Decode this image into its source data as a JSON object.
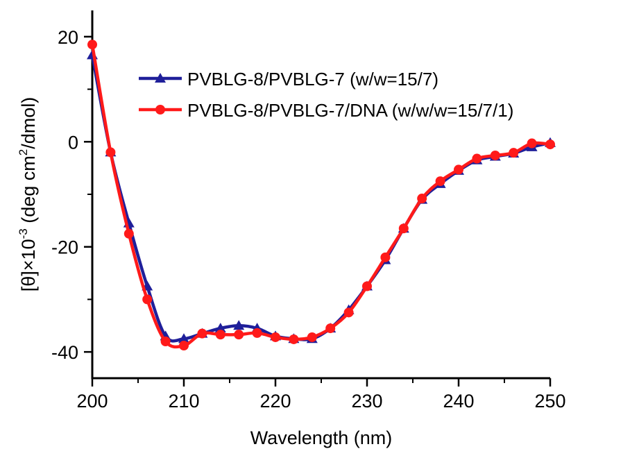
{
  "chart_data": {
    "type": "line",
    "xlabel": "Wavelength (nm)",
    "ylabel": {
      "prefix": "[θ]×10",
      "exp1": "-3",
      "middle": " (deg cm",
      "exp2": "2",
      "suffix": "/dmol)"
    },
    "xlim": [
      200,
      250
    ],
    "ylim": [
      -45,
      25
    ],
    "x_ticks": [
      200,
      210,
      220,
      230,
      240,
      250
    ],
    "y_ticks": [
      20,
      0,
      -20,
      -40
    ],
    "grid": false,
    "legend_position": "top-right",
    "x": [
      200,
      202,
      204,
      206,
      208,
      210,
      212,
      214,
      216,
      218,
      220,
      222,
      224,
      226,
      228,
      230,
      232,
      234,
      236,
      238,
      240,
      242,
      244,
      246,
      248,
      250
    ],
    "series": [
      {
        "name": "PVBLG-8/PVBLG-7 (w/w=15/7)",
        "color": "#1f1f9a",
        "marker": "triangle",
        "values": [
          16.5,
          -2.0,
          -15.5,
          -27.5,
          -37.0,
          -37.5,
          -36.5,
          -35.5,
          -35.0,
          -35.5,
          -37.0,
          -37.5,
          -37.5,
          -35.5,
          -32.0,
          -27.5,
          -22.5,
          -16.5,
          -11.0,
          -8.0,
          -5.5,
          -3.5,
          -2.8,
          -2.2,
          -1.0,
          -0.2
        ]
      },
      {
        "name": "PVBLG-8/PVBLG-7/DNA (w/w/w=15/7/1)",
        "color": "#ff1a1a",
        "marker": "circle",
        "values": [
          18.5,
          -2.0,
          -17.5,
          -30.0,
          -38.0,
          -38.8,
          -36.5,
          -36.7,
          -36.7,
          -36.4,
          -37.2,
          -37.6,
          -37.2,
          -35.5,
          -32.5,
          -27.5,
          -22.0,
          -16.5,
          -10.8,
          -7.5,
          -5.3,
          -3.2,
          -2.6,
          -2.1,
          -0.3,
          -0.5
        ]
      }
    ]
  }
}
